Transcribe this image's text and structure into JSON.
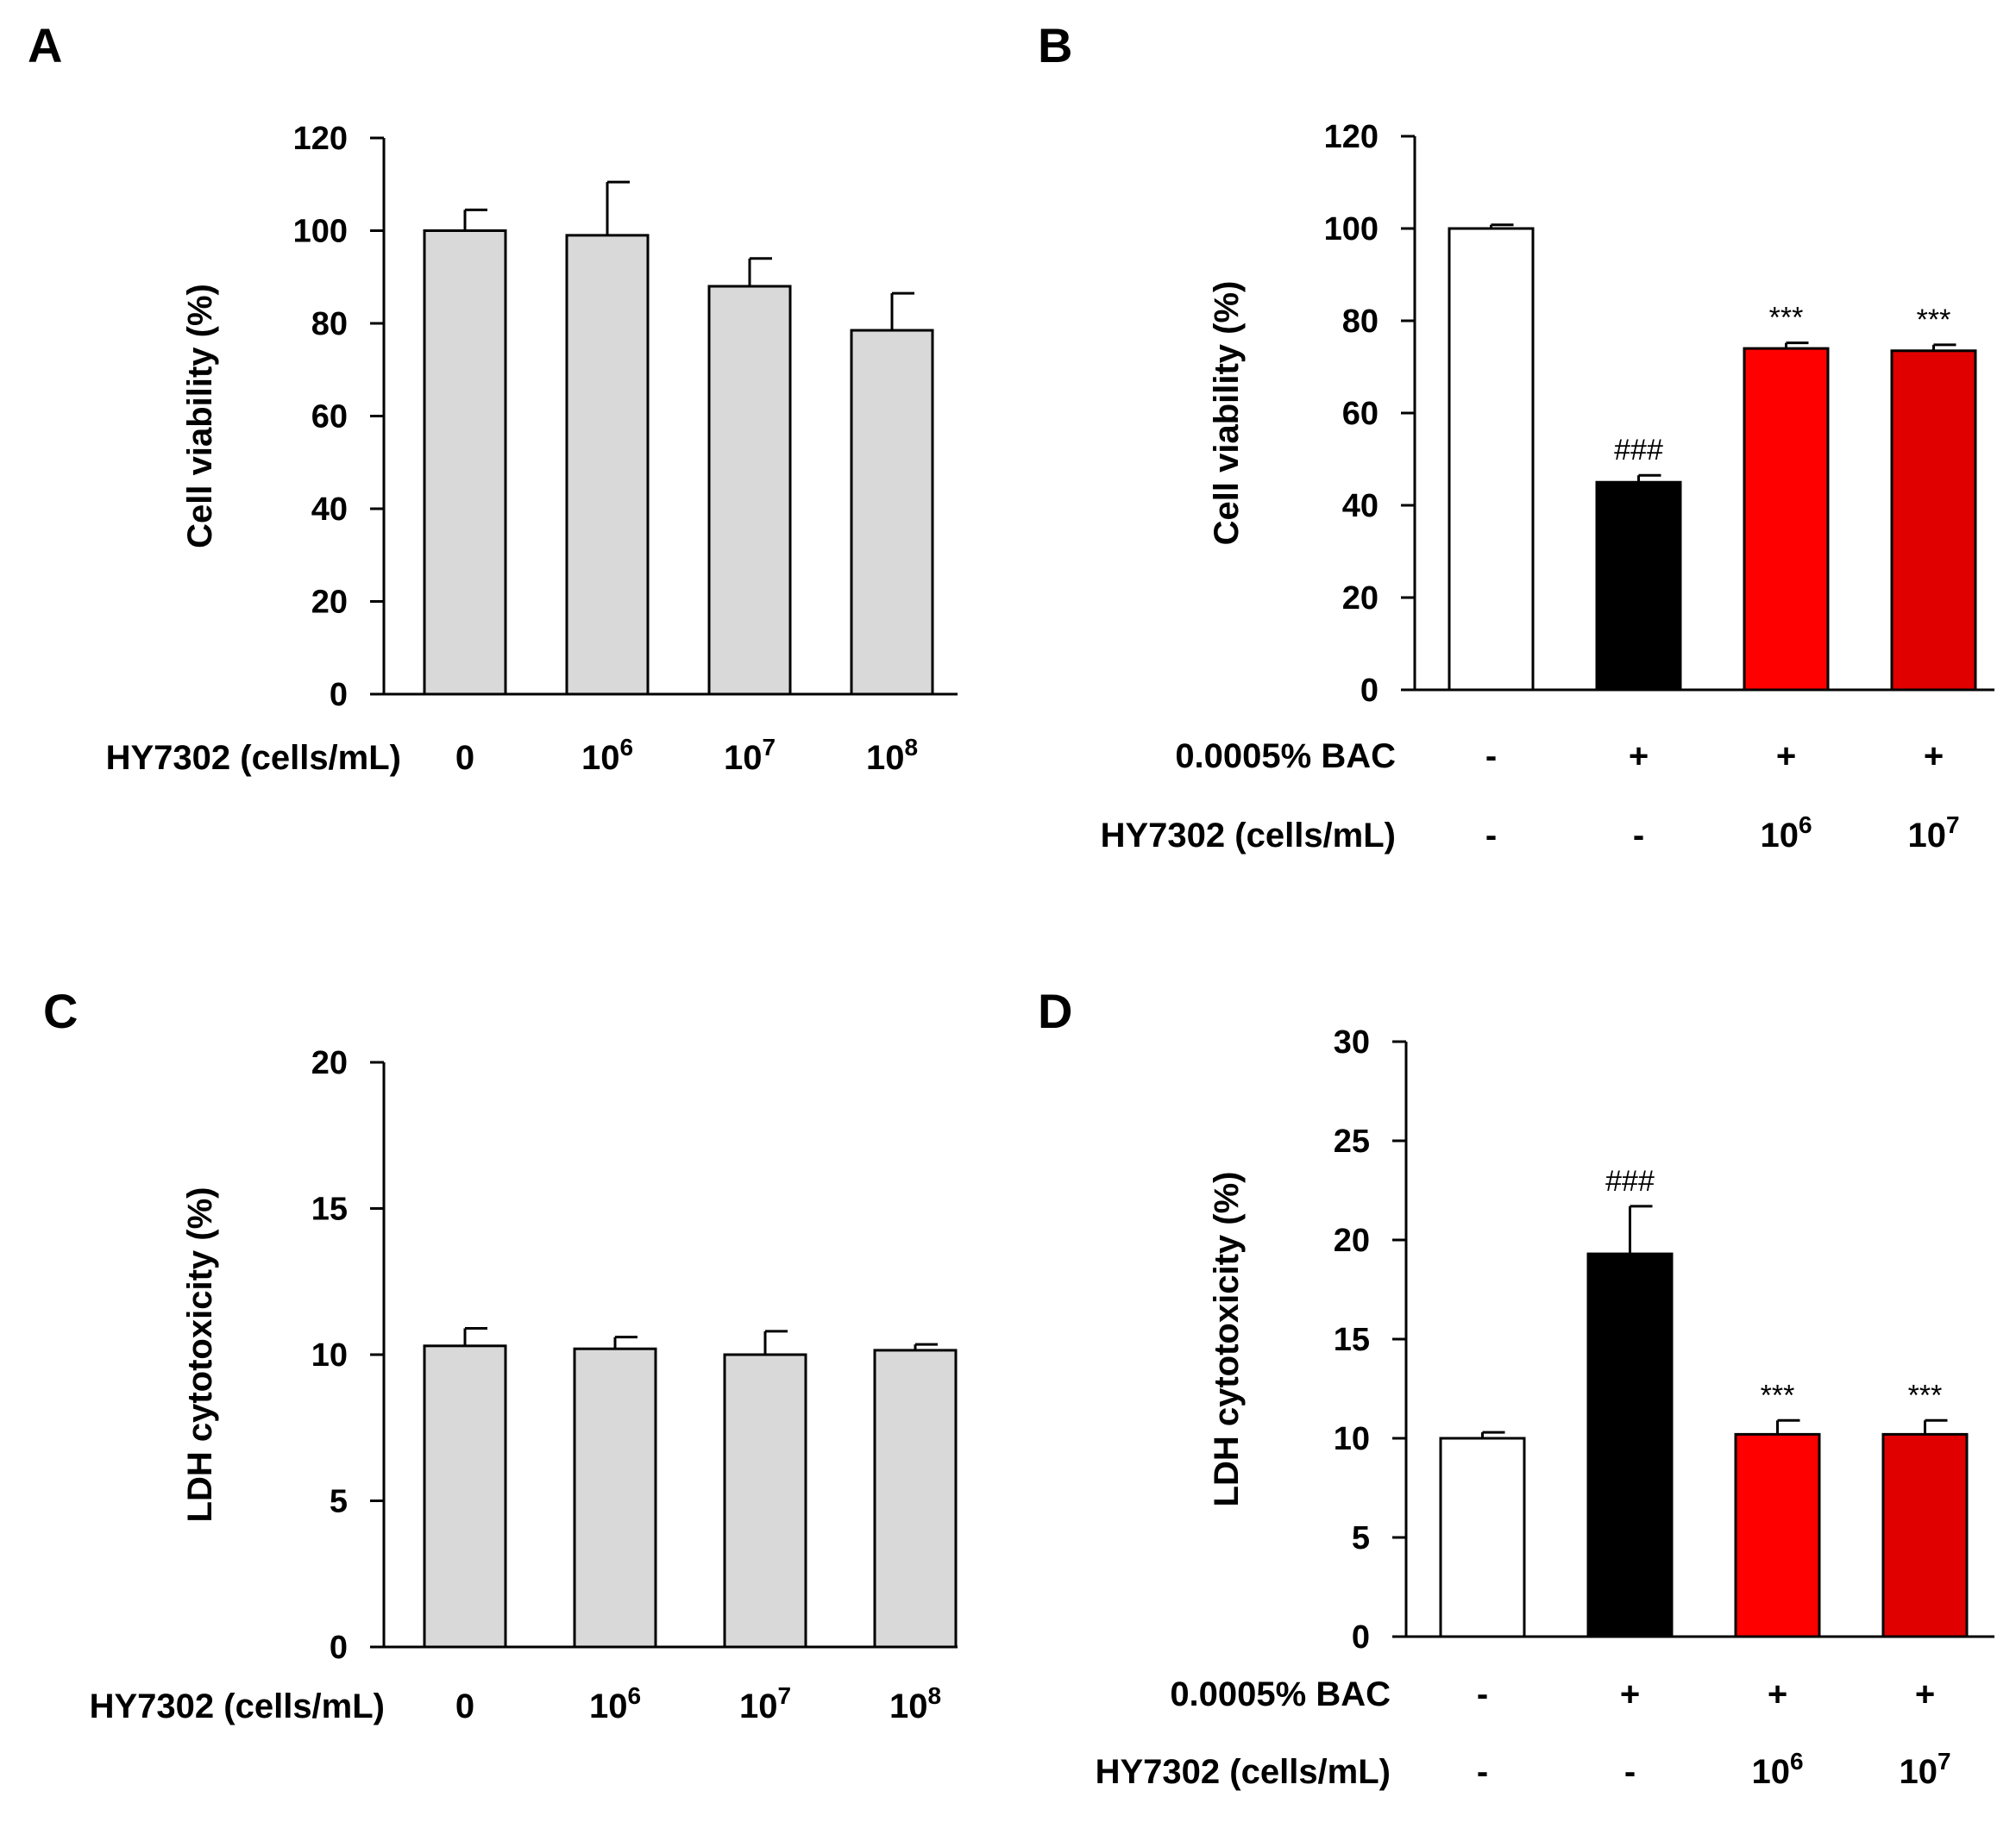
{
  "chart_data": [
    {
      "id": "A",
      "panel_label": "A",
      "type": "bar",
      "ylabel": "Cell viability (%)",
      "ylim": [
        0,
        120
      ],
      "yticks": [
        0,
        20,
        40,
        60,
        80,
        100,
        120
      ],
      "row_labels": [
        "HY7302  (cells/mL)"
      ],
      "categories": [
        {
          "rows": [
            {
              "base": "0",
              "sup": ""
            }
          ]
        },
        {
          "rows": [
            {
              "base": "10",
              "sup": "6"
            }
          ]
        },
        {
          "rows": [
            {
              "base": "10",
              "sup": "7"
            }
          ]
        },
        {
          "rows": [
            {
              "base": "10",
              "sup": "8"
            }
          ]
        }
      ],
      "values": [
        100,
        99,
        88,
        78.5
      ],
      "errors": [
        4.5,
        11.5,
        6,
        8
      ],
      "colors": [
        "#d9d9d9",
        "#d9d9d9",
        "#d9d9d9",
        "#d9d9d9"
      ],
      "annotations": [
        "",
        "",
        "",
        ""
      ]
    },
    {
      "id": "B",
      "panel_label": "B",
      "type": "bar",
      "ylabel": "Cell viability (%)",
      "ylim": [
        0,
        120
      ],
      "yticks": [
        0,
        20,
        40,
        60,
        80,
        100,
        120
      ],
      "row_labels": [
        "0.0005% BAC",
        "HY7302  (cells/mL)"
      ],
      "categories": [
        {
          "rows": [
            {
              "base": "-",
              "sup": ""
            },
            {
              "base": "-",
              "sup": ""
            }
          ]
        },
        {
          "rows": [
            {
              "base": "+",
              "sup": ""
            },
            {
              "base": "-",
              "sup": ""
            }
          ]
        },
        {
          "rows": [
            {
              "base": "+",
              "sup": ""
            },
            {
              "base": "10",
              "sup": "6"
            }
          ]
        },
        {
          "rows": [
            {
              "base": "+",
              "sup": ""
            },
            {
              "base": "10",
              "sup": "7"
            }
          ]
        }
      ],
      "values": [
        100,
        45,
        74,
        73.5
      ],
      "errors": [
        0.8,
        1.5,
        1.2,
        1.3
      ],
      "colors": [
        "#ffffff",
        "#000000",
        "#ff0000",
        "#e00000"
      ],
      "annotations": [
        "",
        "###",
        "***",
        "***"
      ]
    },
    {
      "id": "C",
      "panel_label": "C",
      "type": "bar",
      "ylabel": "LDH cytotoxicity (%)",
      "ylim": [
        0,
        20
      ],
      "yticks": [
        0,
        5,
        10,
        15,
        20
      ],
      "row_labels": [
        "HY7302  (cells/mL)"
      ],
      "categories": [
        {
          "rows": [
            {
              "base": "0",
              "sup": ""
            }
          ]
        },
        {
          "rows": [
            {
              "base": "10",
              "sup": "6"
            }
          ]
        },
        {
          "rows": [
            {
              "base": "10",
              "sup": "7"
            }
          ]
        },
        {
          "rows": [
            {
              "base": "10",
              "sup": "8"
            }
          ]
        }
      ],
      "values": [
        10.3,
        10.2,
        10,
        10.15
      ],
      "errors": [
        0.6,
        0.4,
        0.8,
        0.2
      ],
      "colors": [
        "#d9d9d9",
        "#d9d9d9",
        "#d9d9d9",
        "#d9d9d9"
      ],
      "annotations": [
        "",
        "",
        "",
        ""
      ]
    },
    {
      "id": "D",
      "panel_label": "D",
      "type": "bar",
      "ylabel": "LDH cytotoxicity (%)",
      "ylim": [
        0,
        30
      ],
      "yticks": [
        0,
        5,
        10,
        15,
        20,
        25,
        30
      ],
      "row_labels": [
        "0.0005% BAC",
        "HY7302  (cells/mL)"
      ],
      "categories": [
        {
          "rows": [
            {
              "base": "-",
              "sup": ""
            },
            {
              "base": "-",
              "sup": ""
            }
          ]
        },
        {
          "rows": [
            {
              "base": "+",
              "sup": ""
            },
            {
              "base": "-",
              "sup": ""
            }
          ]
        },
        {
          "rows": [
            {
              "base": "+",
              "sup": ""
            },
            {
              "base": "10",
              "sup": "6"
            }
          ]
        },
        {
          "rows": [
            {
              "base": "+",
              "sup": ""
            },
            {
              "base": "10",
              "sup": "7"
            }
          ]
        }
      ],
      "values": [
        10,
        19.3,
        10.2,
        10.2
      ],
      "errors": [
        0.3,
        2.4,
        0.7,
        0.7
      ],
      "colors": [
        "#ffffff",
        "#000000",
        "#ff0000",
        "#e00000"
      ],
      "annotations": [
        "",
        "###",
        "***",
        "***"
      ]
    }
  ]
}
